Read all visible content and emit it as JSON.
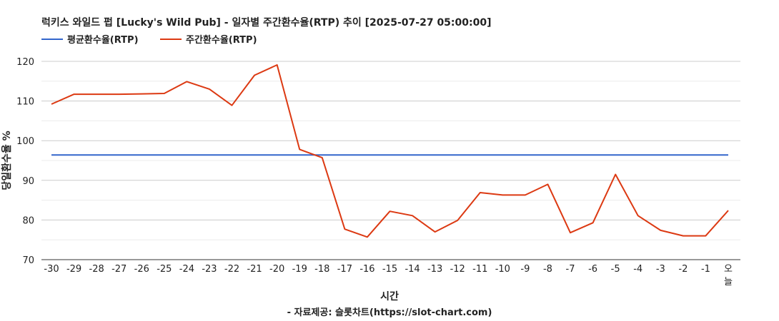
{
  "chart_data": {
    "type": "line",
    "title": "럭키스 와일드 펍 [Lucky's Wild Pub] - 일자별 주간환수율(RTP) 추이 [2025-07-27 05:00:00]",
    "xlabel": "시간",
    "ylabel": "당일환수율 %",
    "source": "- 자료제공: 슬롯차트(https://slot-chart.com)",
    "legend_position": "top-left",
    "grid": true,
    "ylim": [
      70,
      120
    ],
    "yticks": [
      70,
      80,
      90,
      100,
      110,
      120
    ],
    "categories": [
      "-30",
      "-29",
      "-28",
      "-27",
      "-26",
      "-25",
      "-24",
      "-23",
      "-22",
      "-21",
      "-20",
      "-19",
      "-18",
      "-17",
      "-16",
      "-15",
      "-14",
      "-13",
      "-12",
      "-11",
      "-10",
      "-9",
      "-8",
      "-7",
      "-6",
      "-5",
      "-4",
      "-3",
      "-2",
      "-1",
      "오늘"
    ],
    "series": [
      {
        "name": "평균환수율(RTP)",
        "color": "#3366cc",
        "values": [
          96.4,
          96.4,
          96.4,
          96.4,
          96.4,
          96.4,
          96.4,
          96.4,
          96.4,
          96.4,
          96.4,
          96.4,
          96.4,
          96.4,
          96.4,
          96.4,
          96.4,
          96.4,
          96.4,
          96.4,
          96.4,
          96.4,
          96.4,
          96.4,
          96.4,
          96.4,
          96.4,
          96.4,
          96.4,
          96.4,
          96.4
        ]
      },
      {
        "name": "주간환수율(RTP)",
        "color": "#dc3912",
        "values": [
          109.2,
          111.7,
          111.7,
          111.7,
          111.8,
          111.9,
          114.9,
          113.0,
          108.9,
          116.5,
          119.1,
          97.8,
          95.7,
          77.7,
          75.7,
          82.2,
          81.1,
          77.0,
          79.9,
          86.9,
          86.3,
          86.3,
          89.0,
          76.8,
          79.3,
          91.5,
          81.1,
          77.4,
          76.0,
          76.0,
          82.4
        ]
      }
    ]
  }
}
